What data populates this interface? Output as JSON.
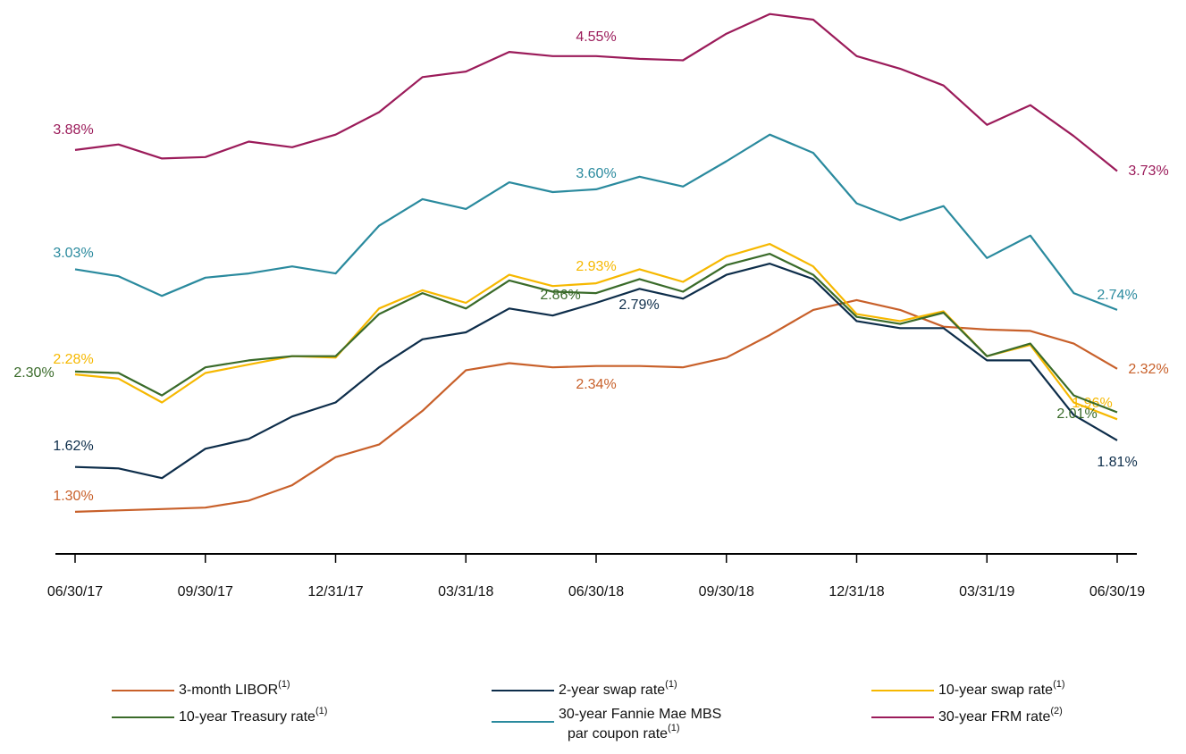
{
  "chart_data": {
    "type": "line",
    "categories": [
      "06/30/17",
      null,
      null,
      "09/30/17",
      null,
      null,
      "12/31/17",
      null,
      null,
      "03/31/18",
      null,
      null,
      "06/30/18",
      null,
      null,
      "09/30/18",
      null,
      null,
      "12/31/18",
      null,
      null,
      "03/31/19",
      null,
      null,
      "06/30/19"
    ],
    "ylim": [
      1.0,
      4.95
    ],
    "grid": false,
    "series": [
      {
        "name": "3-month LIBOR",
        "footnote": "(1)",
        "color": "#c8602a",
        "values": [
          1.3,
          1.31,
          1.32,
          1.33,
          1.38,
          1.49,
          1.69,
          1.78,
          2.02,
          2.31,
          2.36,
          2.33,
          2.34,
          2.34,
          2.33,
          2.4,
          2.56,
          2.74,
          2.81,
          2.74,
          2.62,
          2.6,
          2.59,
          2.5,
          2.32
        ],
        "value_labels": [
          "1.30%",
          null,
          null,
          null,
          null,
          null,
          null,
          null,
          null,
          null,
          null,
          null,
          "2.34%",
          null,
          null,
          null,
          null,
          null,
          null,
          null,
          null,
          null,
          null,
          null,
          "2.32%"
        ]
      },
      {
        "name": "2-year swap rate",
        "footnote": "(1)",
        "color": "#0d2d4a",
        "values": [
          1.62,
          1.61,
          1.54,
          1.75,
          1.82,
          1.98,
          2.08,
          2.33,
          2.53,
          2.58,
          2.75,
          2.7,
          2.79,
          2.89,
          2.82,
          2.99,
          3.07,
          2.96,
          2.66,
          2.61,
          2.61,
          2.38,
          2.38,
          1.99,
          1.81
        ],
        "value_labels": [
          "1.62%",
          null,
          null,
          null,
          null,
          null,
          null,
          null,
          null,
          null,
          null,
          null,
          "2.79%",
          null,
          null,
          null,
          null,
          null,
          null,
          null,
          null,
          null,
          null,
          null,
          "1.81%"
        ]
      },
      {
        "name": "10-year swap rate",
        "footnote": "(1)",
        "color": "#f6b800",
        "values": [
          2.28,
          2.25,
          2.08,
          2.29,
          2.35,
          2.41,
          2.4,
          2.75,
          2.88,
          2.79,
          2.99,
          2.91,
          2.93,
          3.03,
          2.94,
          3.12,
          3.21,
          3.05,
          2.71,
          2.66,
          2.73,
          2.41,
          2.49,
          2.08,
          1.96
        ],
        "value_labels": [
          "2.28%",
          null,
          null,
          null,
          null,
          null,
          null,
          null,
          null,
          null,
          null,
          null,
          "2.93%",
          null,
          null,
          null,
          null,
          null,
          null,
          null,
          null,
          null,
          null,
          null,
          "1.96%"
        ]
      },
      {
        "name": "10-year Treasury rate",
        "footnote": "(1)",
        "color": "#3a6b2a",
        "values": [
          2.3,
          2.29,
          2.13,
          2.33,
          2.38,
          2.41,
          2.41,
          2.71,
          2.86,
          2.75,
          2.95,
          2.87,
          2.86,
          2.96,
          2.87,
          3.06,
          3.14,
          2.99,
          2.69,
          2.64,
          2.72,
          2.41,
          2.5,
          2.13,
          2.01
        ],
        "value_labels": [
          "2.30%",
          null,
          null,
          null,
          null,
          null,
          null,
          null,
          null,
          null,
          null,
          null,
          "2.86%",
          null,
          null,
          null,
          null,
          null,
          null,
          null,
          null,
          null,
          null,
          null,
          "2.01%"
        ]
      },
      {
        "name": "30-year Fannie Mae MBS par coupon rate",
        "footnote": "(1)",
        "color": "#2a8a9e",
        "values": [
          3.03,
          2.98,
          2.84,
          2.97,
          3.0,
          3.05,
          3.0,
          3.34,
          3.53,
          3.46,
          3.65,
          3.58,
          3.6,
          3.69,
          3.62,
          3.8,
          3.99,
          3.86,
          3.5,
          3.38,
          3.48,
          3.11,
          3.27,
          2.86,
          2.74
        ],
        "value_labels": [
          "3.03%",
          null,
          null,
          null,
          null,
          null,
          null,
          null,
          null,
          null,
          null,
          null,
          "3.60%",
          null,
          null,
          null,
          null,
          null,
          null,
          null,
          null,
          null,
          null,
          null,
          "2.74%"
        ]
      },
      {
        "name": "30-year FRM rate",
        "footnote": "(2)",
        "color": "#9b1b5a",
        "values": [
          3.88,
          3.92,
          3.82,
          3.83,
          3.94,
          3.9,
          3.99,
          4.15,
          4.4,
          4.44,
          4.58,
          4.55,
          4.55,
          4.53,
          4.52,
          4.71,
          4.85,
          4.81,
          4.55,
          4.46,
          4.34,
          4.06,
          4.2,
          3.98,
          3.73
        ],
        "value_labels": [
          "3.88%",
          null,
          null,
          null,
          null,
          null,
          null,
          null,
          null,
          null,
          null,
          null,
          "4.55%",
          null,
          null,
          null,
          null,
          null,
          null,
          null,
          null,
          null,
          null,
          null,
          "3.73%"
        ]
      }
    ]
  }
}
